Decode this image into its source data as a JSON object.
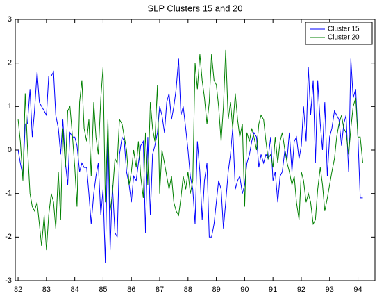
{
  "chart_data": {
    "type": "line",
    "title": "SLP Clusters 15 and 20",
    "x": [
      82,
      82.08,
      82.17,
      82.25,
      82.33,
      82.42,
      82.5,
      82.58,
      82.67,
      82.75,
      82.83,
      82.92,
      83,
      83.08,
      83.17,
      83.25,
      83.33,
      83.42,
      83.5,
      83.58,
      83.67,
      83.75,
      83.83,
      83.92,
      84,
      84.08,
      84.17,
      84.25,
      84.33,
      84.42,
      84.5,
      84.58,
      84.67,
      84.75,
      84.83,
      84.92,
      85,
      85.08,
      85.17,
      85.25,
      85.33,
      85.42,
      85.5,
      85.58,
      85.67,
      85.75,
      85.83,
      85.92,
      86,
      86.08,
      86.17,
      86.25,
      86.33,
      86.42,
      86.5,
      86.58,
      86.67,
      86.75,
      86.83,
      86.92,
      87,
      87.08,
      87.17,
      87.25,
      87.33,
      87.42,
      87.5,
      87.58,
      87.67,
      87.75,
      87.83,
      87.92,
      88,
      88.08,
      88.17,
      88.25,
      88.33,
      88.42,
      88.5,
      88.58,
      88.67,
      88.75,
      88.83,
      88.92,
      89,
      89.08,
      89.17,
      89.25,
      89.33,
      89.42,
      89.5,
      89.58,
      89.67,
      89.75,
      89.83,
      89.92,
      90,
      90.08,
      90.17,
      90.25,
      90.33,
      90.42,
      90.5,
      90.58,
      90.67,
      90.75,
      90.83,
      90.92,
      91,
      91.08,
      91.17,
      91.25,
      91.33,
      91.42,
      91.5,
      91.58,
      91.67,
      91.75,
      91.83,
      91.92,
      92,
      92.08,
      92.17,
      92.25,
      92.33,
      92.42,
      92.5,
      92.58,
      92.67,
      92.75,
      92.83,
      92.92,
      93,
      93.08,
      93.17,
      93.25,
      93.33,
      93.42,
      93.5,
      93.58,
      93.67,
      93.75,
      93.83,
      93.92,
      94,
      94.08,
      94.17
    ],
    "series": [
      {
        "name": "Cluster 15",
        "color": "#0000ff",
        "values": [
          0.0,
          -0.3,
          -0.6,
          0.6,
          0.6,
          1.4,
          0.3,
          0.9,
          1.8,
          1.1,
          1.0,
          0.9,
          0.8,
          1.7,
          1.7,
          1.8,
          0.8,
          0.5,
          -0.1,
          0.7,
          -0.3,
          -0.8,
          0.4,
          0.3,
          0.3,
          0.1,
          -0.5,
          -0.3,
          -0.4,
          -0.4,
          -1.0,
          -1.7,
          -1.0,
          -0.6,
          -0.3,
          -1.5,
          -0.9,
          -2.6,
          0.6,
          -2.3,
          -0.8,
          -1.9,
          -2.0,
          -0.1,
          0.3,
          0.2,
          -0.5,
          -0.8,
          -1.2,
          -0.6,
          -0.7,
          -0.3,
          0.1,
          0.2,
          -1.9,
          0.3,
          -1.5,
          -0.1,
          0.1,
          0.4,
          1.0,
          0.8,
          0.4,
          1.1,
          1.3,
          0.7,
          1.0,
          1.4,
          2.1,
          0.8,
          1.0,
          0.5,
          0.0,
          -0.6,
          -0.9,
          -1.7,
          0.2,
          -0.5,
          -1.6,
          -0.7,
          -0.3,
          -2.0,
          -2.0,
          -1.7,
          -1.2,
          -0.7,
          -0.9,
          -1.8,
          -1.2,
          -0.5,
          -0.1,
          0.5,
          -0.9,
          -0.7,
          -0.6,
          -1.0,
          -0.8,
          -0.3,
          -0.1,
          0.2,
          0.4,
          0.3,
          -0.4,
          -0.1,
          -0.3,
          -0.1,
          -0.2,
          0.3,
          -0.7,
          -0.5,
          -1.2,
          -0.6,
          -0.5,
          0.0,
          -0.2,
          0.4,
          -0.5,
          0.2,
          0.3,
          -0.2,
          0.1,
          1.0,
          0.2,
          1.9,
          0.8,
          1.6,
          -0.3,
          1.6,
          0.6,
          0.0,
          1.1,
          -0.6,
          0.3,
          0.5,
          0.9,
          0.8,
          0.7,
          0.1,
          0.6,
          0.8,
          -0.5,
          2.1,
          1.2,
          1.4,
          0.3,
          -1.1,
          -1.1
        ]
      },
      {
        "name": "Cluster 20",
        "color": "#008000",
        "values": [
          0.7,
          0.2,
          -0.7,
          1.3,
          0.1,
          -1.0,
          -1.3,
          -1.4,
          -1.2,
          -1.7,
          -2.2,
          -1.5,
          -2.3,
          -1.5,
          -1.0,
          -1.2,
          -1.8,
          -0.5,
          -1.6,
          0.5,
          -0.4,
          0.9,
          1.0,
          0.3,
          -0.4,
          -1.3,
          1.1,
          1.6,
          0.5,
          0.2,
          0.7,
          -0.6,
          1.1,
          0.3,
          -0.1,
          1.2,
          1.9,
          -1.2,
          0.7,
          -1.4,
          -1.0,
          -0.2,
          -0.3,
          0.7,
          0.6,
          0.3,
          0.0,
          -0.8,
          -0.5,
          0.0,
          -0.4,
          0.2,
          -0.6,
          -1.1,
          0.4,
          -0.8,
          1.1,
          0.5,
          0.2,
          1.5,
          -1.0,
          0.0,
          -0.3,
          -0.6,
          -0.9,
          -0.6,
          -1.2,
          -1.4,
          -1.5,
          -1.1,
          -0.6,
          -0.9,
          -0.5,
          -1.0,
          -0.7,
          2.0,
          1.4,
          2.2,
          1.6,
          1.2,
          0.6,
          1.1,
          2.2,
          1.6,
          1.5,
          1.0,
          0.2,
          1.0,
          2.3,
          0.7,
          1.1,
          0.5,
          1.3,
          0.7,
          0.3,
          0.6,
          -1.3,
          0.4,
          0.2,
          0.5,
          0.3,
          0.0,
          0.6,
          0.8,
          0.7,
          0.2,
          -0.2,
          -0.1,
          -0.4,
          0.3,
          -0.3,
          0.2,
          0.4,
          0.0,
          -0.3,
          -0.5,
          -0.8,
          -0.6,
          -1.2,
          -1.6,
          -0.5,
          -0.7,
          -1.2,
          -1.0,
          -1.2,
          -1.7,
          -1.6,
          -0.9,
          -0.4,
          -0.8,
          -1.4,
          -1.1,
          -0.8,
          -0.5,
          -0.2,
          0.3,
          0.6,
          0.8,
          0.5,
          0.4,
          -0.1,
          0.5,
          1.0,
          1.2,
          0.3,
          0.3,
          -0.3
        ]
      }
    ],
    "xlim": [
      81.9,
      94.6
    ],
    "xticks": [
      82,
      83,
      84,
      85,
      86,
      87,
      88,
      89,
      90,
      91,
      92,
      93,
      94
    ],
    "ylim": [
      -3,
      3
    ],
    "yticks": [
      -3,
      -2,
      -1,
      0,
      1,
      2,
      3
    ],
    "legend": "upper right",
    "grid": false
  }
}
